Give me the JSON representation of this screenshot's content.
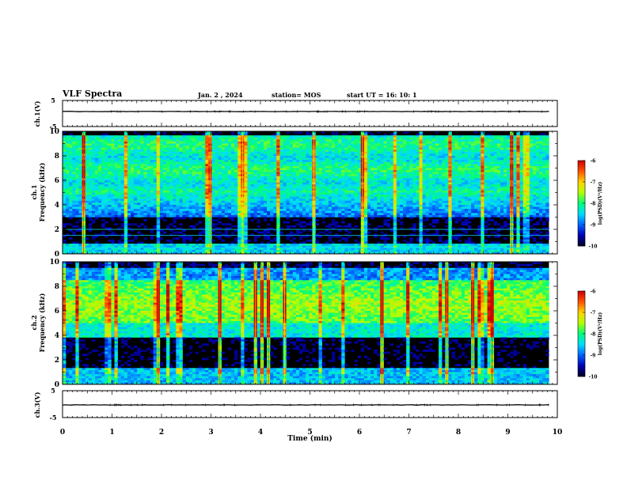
{
  "header": {
    "title": "VLF Spectra",
    "date": "Jan. 2 , 2024",
    "station": "station= MOS",
    "start": "start UT = 16: 10: 1"
  },
  "chart_data": [
    {
      "type": "line",
      "panel": "ch1-waveform",
      "ylabel": "ch.1(V)",
      "ylim": [
        -5,
        5
      ],
      "y_ticks": [
        "5",
        "-5"
      ],
      "xlim": [
        0,
        10
      ],
      "series": [
        {
          "x": [
            0,
            9.83
          ],
          "values": [
            0,
            0
          ]
        }
      ]
    },
    {
      "type": "heatmap",
      "panel": "ch1-spectrogram",
      "ylabel": "ch.1 Frequency (kHz)",
      "ylim": [
        0,
        10
      ],
      "y_ticks": [
        "0",
        "2",
        "4",
        "6",
        "8",
        "10"
      ],
      "xlim": [
        0,
        10
      ],
      "data_xmax": 9.83,
      "colorbar": {
        "label": "log(PSD)(V²/Hz)",
        "range": [
          -10,
          -6
        ],
        "ticks": [
          "-6",
          "-7",
          "-8",
          "-9",
          "-10"
        ]
      },
      "horizontal_lines_khz": [
        0.5,
        1.5,
        2.0
      ]
    },
    {
      "type": "heatmap",
      "panel": "ch2-spectrogram",
      "ylabel": "ch.2 Frequency (kHz)",
      "ylim": [
        0,
        10
      ],
      "y_ticks": [
        "0",
        "2",
        "4",
        "6",
        "8",
        "10"
      ],
      "xlim": [
        0,
        10
      ],
      "data_xmax": 9.83,
      "colorbar": {
        "label": "log(PSD)(V²/Hz)",
        "range": [
          -10,
          -6
        ],
        "ticks": [
          "-6",
          "-7",
          "-8",
          "-9",
          "-10"
        ]
      }
    },
    {
      "type": "line",
      "panel": "ch3-waveform",
      "ylabel": "ch.3(V)",
      "ylim": [
        -5,
        5
      ],
      "y_ticks": [
        "5",
        "-5"
      ],
      "xlim": [
        0,
        10
      ],
      "series": [
        {
          "x": [
            0,
            9.83
          ],
          "values": [
            0,
            0
          ]
        }
      ]
    }
  ],
  "xaxis": {
    "label": "Time (min)",
    "ticks": [
      "0",
      "1",
      "2",
      "3",
      "4",
      "5",
      "6",
      "7",
      "8",
      "9",
      "10"
    ]
  },
  "colors": {
    "background": "#000000",
    "colormap": [
      "#000020",
      "#0000b4",
      "#0064ff",
      "#00dcff",
      "#00ff78",
      "#b4ff00",
      "#ffd200",
      "#ff5000",
      "#c80000"
    ]
  }
}
